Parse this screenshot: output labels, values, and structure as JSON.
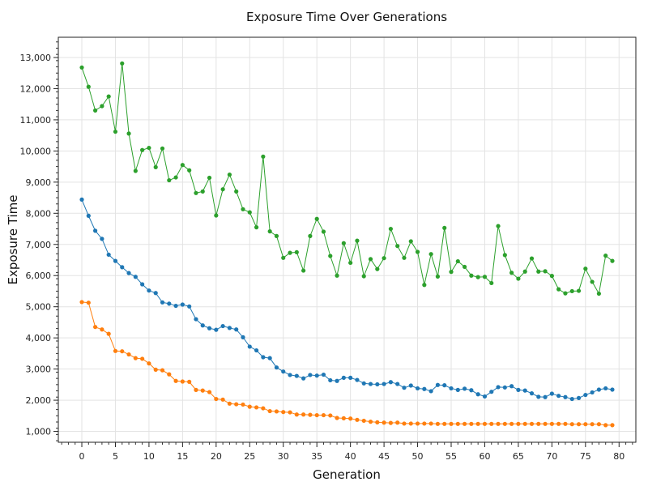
{
  "chart_data": {
    "type": "line",
    "title": "Exposure Time Over Generations",
    "xlabel": "Generation",
    "ylabel": "Exposure Time",
    "xlim": [
      -3.5,
      82.5
    ],
    "ylim": [
      650,
      13650
    ],
    "xticks": [
      0,
      5,
      10,
      15,
      20,
      25,
      30,
      35,
      40,
      45,
      50,
      55,
      60,
      65,
      70,
      75,
      80
    ],
    "xtick_labels": [
      "0",
      "5",
      "10",
      "15",
      "20",
      "25",
      "30",
      "35",
      "40",
      "45",
      "50",
      "55",
      "60",
      "65",
      "70",
      "75",
      "80"
    ],
    "yticks": [
      1000,
      2000,
      3000,
      4000,
      5000,
      6000,
      7000,
      8000,
      9000,
      10000,
      11000,
      12000,
      13000
    ],
    "ytick_labels": [
      "1,000",
      "2,000",
      "3,000",
      "4,000",
      "5,000",
      "6,000",
      "7,000",
      "8,000",
      "9,000",
      "10,000",
      "11,000",
      "12,000",
      "13,000"
    ],
    "grid": true,
    "legend": "none",
    "x": [
      0,
      1,
      2,
      3,
      4,
      5,
      6,
      7,
      8,
      9,
      10,
      11,
      12,
      13,
      14,
      15,
      16,
      17,
      18,
      19,
      20,
      21,
      22,
      23,
      24,
      25,
      26,
      27,
      28,
      29,
      30,
      31,
      32,
      33,
      34,
      35,
      36,
      37,
      38,
      39,
      40,
      41,
      42,
      43,
      44,
      45,
      46,
      47,
      48,
      49,
      50,
      51,
      52,
      53,
      54,
      55,
      56,
      57,
      58,
      59,
      60,
      61,
      62,
      63,
      64,
      65,
      66,
      67,
      68,
      69,
      70,
      71,
      72,
      73,
      74,
      75,
      76,
      77,
      78,
      79
    ],
    "series": [
      {
        "name": "series-blue",
        "color": "#1f77b4",
        "values": [
          8440,
          7920,
          7440,
          7180,
          6670,
          6470,
          6270,
          6080,
          5960,
          5720,
          5520,
          5440,
          5140,
          5100,
          5030,
          5070,
          5010,
          4600,
          4400,
          4310,
          4260,
          4380,
          4320,
          4270,
          4020,
          3720,
          3600,
          3380,
          3350,
          3050,
          2920,
          2810,
          2780,
          2700,
          2810,
          2790,
          2820,
          2640,
          2620,
          2720,
          2720,
          2650,
          2540,
          2520,
          2510,
          2520,
          2580,
          2520,
          2400,
          2470,
          2380,
          2360,
          2290,
          2490,
          2480,
          2380,
          2330,
          2370,
          2320,
          2190,
          2120,
          2270,
          2420,
          2410,
          2450,
          2330,
          2310,
          2220,
          2110,
          2100,
          2210,
          2140,
          2100,
          2040,
          2070,
          2170,
          2250,
          2340,
          2380,
          2340
        ]
      },
      {
        "name": "series-orange",
        "color": "#ff7f0e",
        "values": [
          5150,
          5130,
          4350,
          4270,
          4130,
          3580,
          3570,
          3470,
          3350,
          3330,
          3180,
          2980,
          2960,
          2830,
          2620,
          2600,
          2590,
          2330,
          2310,
          2260,
          2040,
          2020,
          1890,
          1870,
          1860,
          1790,
          1770,
          1740,
          1650,
          1640,
          1620,
          1610,
          1540,
          1540,
          1530,
          1520,
          1520,
          1510,
          1430,
          1420,
          1410,
          1370,
          1340,
          1310,
          1290,
          1280,
          1270,
          1280,
          1250,
          1250,
          1250,
          1250,
          1250,
          1240,
          1240,
          1240,
          1240,
          1240,
          1240,
          1240,
          1240,
          1240,
          1240,
          1240,
          1240,
          1240,
          1240,
          1240,
          1240,
          1240,
          1240,
          1240,
          1240,
          1230,
          1230,
          1230,
          1230,
          1230,
          1200,
          1200
        ]
      },
      {
        "name": "series-green",
        "color": "#2ca02c",
        "values": [
          12680,
          12060,
          11300,
          11440,
          11750,
          10620,
          12810,
          10560,
          9360,
          10030,
          10100,
          9480,
          10080,
          9060,
          9150,
          9550,
          9380,
          8650,
          8700,
          9140,
          7930,
          8770,
          9240,
          8700,
          8130,
          8030,
          7550,
          9820,
          7420,
          7270,
          6570,
          6730,
          6750,
          6160,
          7270,
          7820,
          7410,
          6630,
          6000,
          7040,
          6410,
          7120,
          5980,
          6530,
          6210,
          6560,
          7500,
          6950,
          6570,
          7100,
          6760,
          5700,
          6690,
          5970,
          7530,
          6120,
          6460,
          6280,
          6000,
          5950,
          5960,
          5760,
          7590,
          6660,
          6090,
          5900,
          6130,
          6550,
          6130,
          6140,
          5990,
          5560,
          5430,
          5500,
          5510,
          6220,
          5800,
          5420,
          6640,
          6470
        ]
      }
    ]
  }
}
